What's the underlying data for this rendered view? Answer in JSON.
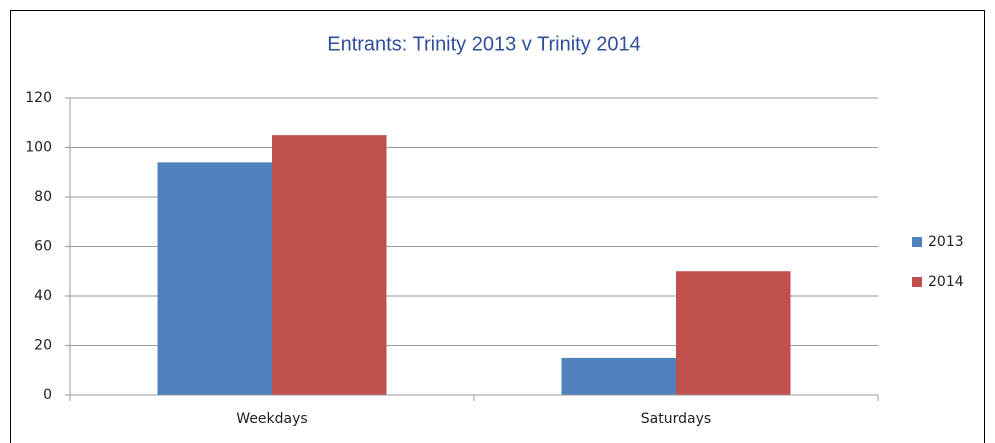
{
  "chart_data": {
    "type": "bar",
    "title": "Entrants: Trinity 2013 v Trinity 2014",
    "categories": [
      "Weekdays",
      "Saturdays"
    ],
    "series": [
      {
        "name": "2013",
        "color": "#4f81bd",
        "values": [
          94,
          15
        ]
      },
      {
        "name": "2014",
        "color": "#c0504d",
        "values": [
          105,
          50
        ]
      }
    ],
    "ylim": [
      0,
      120
    ],
    "yticks": [
      0,
      20,
      40,
      60,
      80,
      100,
      120
    ],
    "grid": true,
    "legend": "right"
  }
}
